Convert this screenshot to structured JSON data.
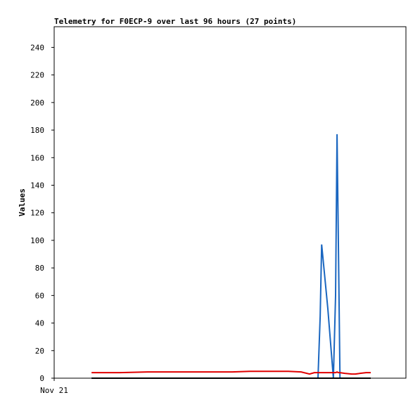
{
  "chart_data": {
    "type": "line",
    "title": "Telemetry for F0ECP-9 over last 96 hours (27 points)",
    "y_label": "Values",
    "x": [
      10.2,
      17.9,
      25.5,
      33.2,
      40.9,
      48.6,
      53.4,
      58.2,
      63.9,
      67.4,
      69.7,
      71.0,
      72.0,
      72.6,
      73.0,
      74.7,
      76.2,
      76.8,
      77.2,
      77.6,
      78.0,
      79.3,
      81.2,
      82.2,
      83.5,
      85.1,
      86.4
    ],
    "series": [
      {
        "name": "blue",
        "color": "#1a66c0",
        "values": [
          0,
          0,
          0,
          0,
          0,
          0,
          0,
          0,
          0,
          0,
          0,
          0,
          0,
          45,
          97,
          50,
          0,
          60,
          177,
          90,
          0,
          0,
          0,
          0,
          0,
          0,
          0
        ]
      },
      {
        "name": "red",
        "color": "#e00000",
        "values": [
          4,
          4,
          4.5,
          4.5,
          4.5,
          4.5,
          5,
          5,
          5,
          4.5,
          3,
          4,
          4,
          4,
          4,
          4,
          4,
          4,
          4.5,
          4,
          4,
          3.5,
          3,
          3,
          3.5,
          4,
          4
        ]
      },
      {
        "name": "black",
        "color": "#000000",
        "values": [
          0,
          0,
          0,
          0,
          0,
          0,
          0,
          0,
          0,
          0,
          0,
          0,
          0,
          0,
          0,
          0,
          0,
          0,
          0,
          0,
          0,
          0,
          0,
          0,
          0,
          0,
          0
        ]
      }
    ],
    "xlim": [
      0,
      96
    ],
    "xticks": [
      {
        "value": 0,
        "label": "Nov 21"
      }
    ],
    "ylim": [
      0,
      255
    ],
    "yticks": [
      0,
      20,
      40,
      60,
      80,
      100,
      120,
      140,
      160,
      180,
      200,
      220,
      240
    ]
  }
}
